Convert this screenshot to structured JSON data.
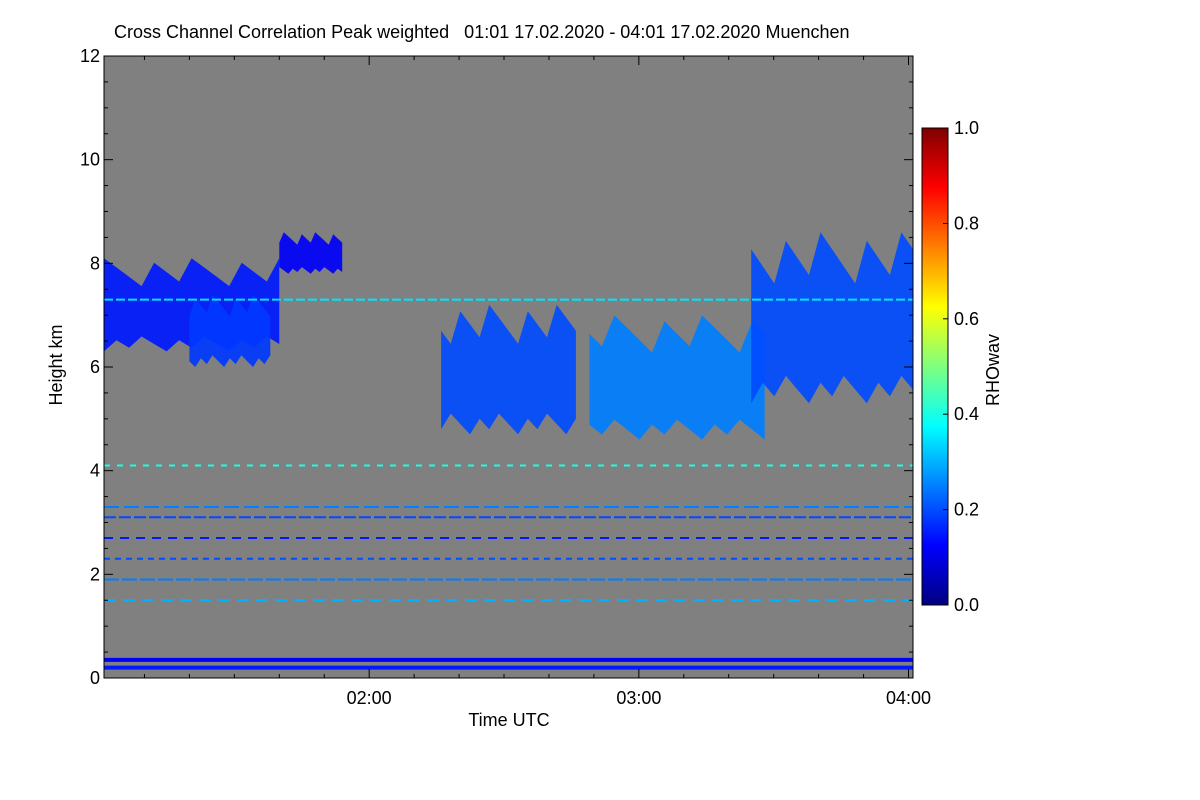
{
  "chart_data": {
    "type": "heatmap",
    "title": "Cross Channel Correlation Peak weighted   01:01 17.02.2020 - 04:01 17.02.2020 Muenchen",
    "xlabel": "Time UTC",
    "ylabel": "Height km",
    "xlim": [
      "01:01",
      "04:01"
    ],
    "ylim": [
      0,
      12
    ],
    "x_ticks": [
      "02:00",
      "03:00",
      "04:00"
    ],
    "y_ticks": [
      "0",
      "2",
      "4",
      "6",
      "8",
      "10",
      "12"
    ],
    "background_color": "#808080",
    "colorbar": {
      "label": "RHOwav",
      "range": [
        0.0,
        1.0
      ],
      "ticks": [
        "0.0",
        "0.2",
        "0.4",
        "0.6",
        "0.8",
        "1.0"
      ],
      "colors": [
        "#00007f",
        "#0000ff",
        "#007fff",
        "#00ffff",
        "#7fff7f",
        "#ffff00",
        "#ff7f00",
        "#ff0000",
        "#7f0000"
      ]
    },
    "cloud_regions": [
      {
        "start": "01:01",
        "end": "01:40",
        "base_km": 6.3,
        "top_km": 8.1,
        "rho": 0.15
      },
      {
        "start": "01:20",
        "end": "01:38",
        "base_km": 6.0,
        "top_km": 7.4,
        "rho": 0.18
      },
      {
        "start": "01:40",
        "end": "01:54",
        "base_km": 7.8,
        "top_km": 8.6,
        "rho": 0.12
      },
      {
        "start": "02:16",
        "end": "02:46",
        "base_km": 4.7,
        "top_km": 7.2,
        "rho": 0.2
      },
      {
        "start": "02:49",
        "end": "03:28",
        "base_km": 4.6,
        "top_km": 7.0,
        "rho": 0.25
      },
      {
        "start": "03:25",
        "end": "04:01",
        "base_km": 5.3,
        "top_km": 8.6,
        "rho": 0.2
      }
    ],
    "horizontal_layers": [
      {
        "height_km": 0.2,
        "rho": 0.15
      },
      {
        "height_km": 0.35,
        "rho": 0.12
      },
      {
        "height_km": 1.5,
        "rho": 0.3
      },
      {
        "height_km": 1.9,
        "rho": 0.25
      },
      {
        "height_km": 2.3,
        "rho": 0.2
      },
      {
        "height_km": 2.7,
        "rho": 0.15
      },
      {
        "height_km": 3.1,
        "rho": 0.2
      },
      {
        "height_km": 3.3,
        "rho": 0.25
      },
      {
        "height_km": 4.1,
        "rho": 0.4
      },
      {
        "height_km": 7.3,
        "rho": 0.35
      }
    ]
  }
}
